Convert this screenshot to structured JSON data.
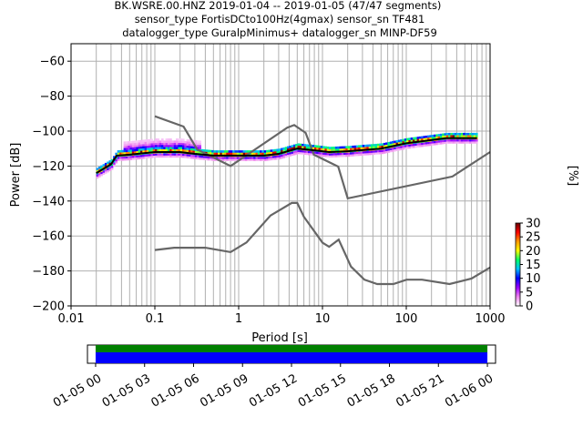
{
  "title_lines": [
    "BK.WSRE.00.HNZ   2019-01-04 -- 2019-01-05  (47/47 segments)",
    "sensor_type FortisDCto100Hz(4gmax) sensor_sn TF481",
    "datalogger_type GuralpMinimus+ datalogger_sn MINP-DF59"
  ],
  "chart_data": [
    {
      "type": "heatmap",
      "title": "BK.WSRE.00.HNZ   2019-01-04 -- 2019-01-05  (47/47 segments)",
      "xlabel": "Period [s]",
      "ylabel": "Power [dB]",
      "xscale": "log",
      "xlim": [
        0.01,
        1000
      ],
      "ylim": [
        -200,
        -50
      ],
      "x_ticks": [
        "0.01",
        "0.1",
        "1",
        "10",
        "100",
        "1000"
      ],
      "y_ticks": [
        "−60",
        "−80",
        "−100",
        "−120",
        "−140",
        "−160",
        "−180",
        "−200"
      ],
      "grid": true,
      "colorbar": {
        "label": "[%]",
        "range": [
          0,
          30
        ],
        "ticks": [
          "0",
          "5",
          "10",
          "15",
          "20",
          "25",
          "30"
        ],
        "colors": [
          "#ffffff",
          "#ee82ee",
          "#9900ff",
          "#0000ff",
          "#00bfff",
          "#00ff66",
          "#ffff00",
          "#ff9900",
          "#ff0000",
          "#660000"
        ]
      },
      "series": [
        {
          "name": "",
          "role": "noise-model-high",
          "color": "#666666",
          "points": [
            [
              0.1,
              -91.5
            ],
            [
              0.22,
              -97.4
            ],
            [
              0.32,
              -110.5
            ],
            [
              0.8,
              -120
            ],
            [
              3.8,
              -98
            ],
            [
              4.6,
              -96.5
            ],
            [
              6.3,
              -101
            ],
            [
              7.9,
              -113.5
            ],
            [
              15.4,
              -120.3
            ],
            [
              20,
              -138.5
            ],
            [
              354.8,
              -126
            ],
            [
              1000,
              -112
            ]
          ]
        },
        {
          "name": "",
          "role": "noise-model-low",
          "color": "#666666",
          "points": [
            [
              0.1,
              -168
            ],
            [
              0.17,
              -166.7
            ],
            [
              0.4,
              -166.7
            ],
            [
              0.8,
              -169.2
            ],
            [
              1.24,
              -163.7
            ],
            [
              2.4,
              -148.3
            ],
            [
              4.3,
              -141.1
            ],
            [
              5,
              -141.1
            ],
            [
              6,
              -149
            ],
            [
              10,
              -163.8
            ],
            [
              12,
              -166.2
            ],
            [
              15.6,
              -162.1
            ],
            [
              21.9,
              -177.5
            ],
            [
              31.6,
              -185
            ],
            [
              45,
              -187.5
            ],
            [
              70,
              -187.5
            ],
            [
              101,
              -185
            ],
            [
              154,
              -185
            ],
            [
              328,
              -187.5
            ],
            [
              600,
              -184.4
            ],
            [
              1000,
              -178
            ]
          ]
        },
        {
          "name": "",
          "role": "mode",
          "color": "#000000",
          "points": [
            [
              0.02,
              -124
            ],
            [
              0.03,
              -119
            ],
            [
              0.035,
              -114
            ],
            [
              0.05,
              -113.5
            ],
            [
              0.1,
              -112
            ],
            [
              0.2,
              -112
            ],
            [
              0.3,
              -113
            ],
            [
              0.5,
              -114
            ],
            [
              1,
              -114
            ],
            [
              2,
              -114
            ],
            [
              3,
              -113
            ],
            [
              5,
              -110
            ],
            [
              8,
              -111
            ],
            [
              12,
              -112
            ],
            [
              20,
              -111.5
            ],
            [
              50,
              -110
            ],
            [
              100,
              -107
            ],
            [
              300,
              -104
            ],
            [
              700,
              -104
            ]
          ]
        }
      ],
      "lower_strip": {
        "type": "bar",
        "x_ticks": [
          "01-05 00",
          "01-05 03",
          "01-05 06",
          "01-05 09",
          "01-05 12",
          "01-05 15",
          "01-05 18",
          "01-05 21",
          "01-06 00"
        ],
        "xlim_hours": [
          -0.5,
          24.5
        ],
        "bars": [
          {
            "name": "",
            "color": "#008000",
            "start_hour": 0,
            "end_hour": 24
          },
          {
            "name": "",
            "color": "#0000ff",
            "start_hour": 0,
            "end_hour": 24
          }
        ]
      }
    }
  ]
}
